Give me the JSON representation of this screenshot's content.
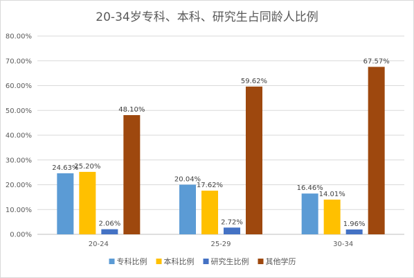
{
  "chart_data": {
    "type": "bar",
    "title": "20-34岁专科、本科、研究生占同龄人比例",
    "xlabel": "",
    "ylabel": "",
    "ylim": [
      0,
      80
    ],
    "yticks": [
      "0.00%",
      "10.00%",
      "20.00%",
      "30.00%",
      "40.00%",
      "50.00%",
      "60.00%",
      "70.00%",
      "80.00%"
    ],
    "categories": [
      "20-24",
      "25-29",
      "30-34"
    ],
    "grid": true,
    "legend_position": "bottom",
    "series": [
      {
        "name": "专科比例",
        "color": "#5b9bd5",
        "values": [
          24.63,
          20.04,
          16.46
        ],
        "labels": [
          "24.63%",
          "20.04%",
          "16.46%"
        ]
      },
      {
        "name": "本科比例",
        "color": "#ffc000",
        "values": [
          25.2,
          17.62,
          14.01
        ],
        "labels": [
          "25.20%",
          "17.62%",
          "14.01%"
        ]
      },
      {
        "name": "研究生比例",
        "color": "#4472c4",
        "values": [
          2.06,
          2.72,
          1.96
        ],
        "labels": [
          "2.06%",
          "2.72%",
          "1.96%"
        ]
      },
      {
        "name": "其他学历",
        "color": "#9e480e",
        "values": [
          48.1,
          59.62,
          67.57
        ],
        "labels": [
          "48.10%",
          "59.62%",
          "67.57%"
        ]
      }
    ]
  }
}
